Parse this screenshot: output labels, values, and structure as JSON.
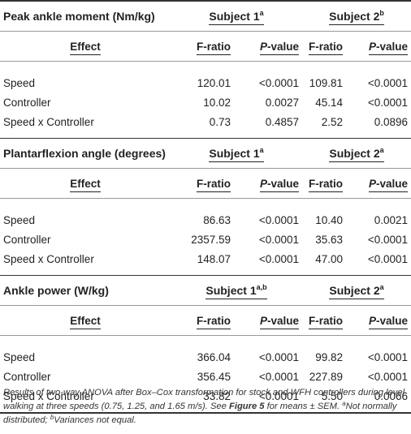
{
  "sections": [
    {
      "title": "Peak ankle moment (Nm/kg)",
      "subject1": "Subject 1",
      "subject1_sup": "a",
      "subject2": "Subject 2",
      "subject2_sup": "b",
      "rows": [
        {
          "effect": "Speed",
          "f1": "120.01",
          "p1": "<0.0001",
          "f2": "109.81",
          "p2": "<0.0001"
        },
        {
          "effect": "Controller",
          "f1": "10.02",
          "p1": "0.0027",
          "f2": "45.14",
          "p2": "<0.0001"
        },
        {
          "effect": "Speed x Controller",
          "f1": "0.73",
          "p1": "0.4857",
          "f2": "2.52",
          "p2": "0.0896"
        }
      ]
    },
    {
      "title": "Plantarflexion angle (degrees)",
      "subject1": "Subject 1",
      "subject1_sup": "a",
      "subject2": "Subject 2",
      "subject2_sup": "a",
      "rows": [
        {
          "effect": "Speed",
          "f1": "86.63",
          "p1": "<0.0001",
          "f2": "10.40",
          "p2": "0.0021"
        },
        {
          "effect": "Controller",
          "f1": "2357.59",
          "p1": "<0.0001",
          "f2": "35.63",
          "p2": "<0.0001"
        },
        {
          "effect": "Speed x Controller",
          "f1": "148.07",
          "p1": "<0.0001",
          "f2": "47.00",
          "p2": "<0.0001"
        }
      ]
    },
    {
      "title": "Ankle power (W/kg)",
      "subject1": "Subject 1",
      "subject1_sup": "a,b",
      "subject2": "Subject 2",
      "subject2_sup": "a",
      "rows": [
        {
          "effect": "Speed",
          "f1": "366.04",
          "p1": "<0.0001",
          "f2": "99.82",
          "p2": "<0.0001"
        },
        {
          "effect": "Controller",
          "f1": "356.45",
          "p1": "<0.0001",
          "f2": "227.89",
          "p2": "<0.0001"
        },
        {
          "effect": "Speed x Controller",
          "f1": "33.82",
          "p1": "<0.0001",
          "f2": "5.50",
          "p2": "0.0066"
        }
      ]
    }
  ],
  "columns": {
    "effect": "Effect",
    "f_ratio": "F-ratio",
    "p_letter": "P",
    "p_suffix": "-value"
  },
  "caption": {
    "part1": "Results of two-way ANOVA after Box–Cox transformation for stock and WFH controllers during level walking at three speeds (0.75, 1.25, and 1.65 m/s). See ",
    "figure_ref": "Figure 5",
    "part2": " for means ± SEM. ",
    "sup_a": "a",
    "note_a": "Not normally distributed; ",
    "sup_b": "b",
    "note_b": "Variances not equal."
  }
}
